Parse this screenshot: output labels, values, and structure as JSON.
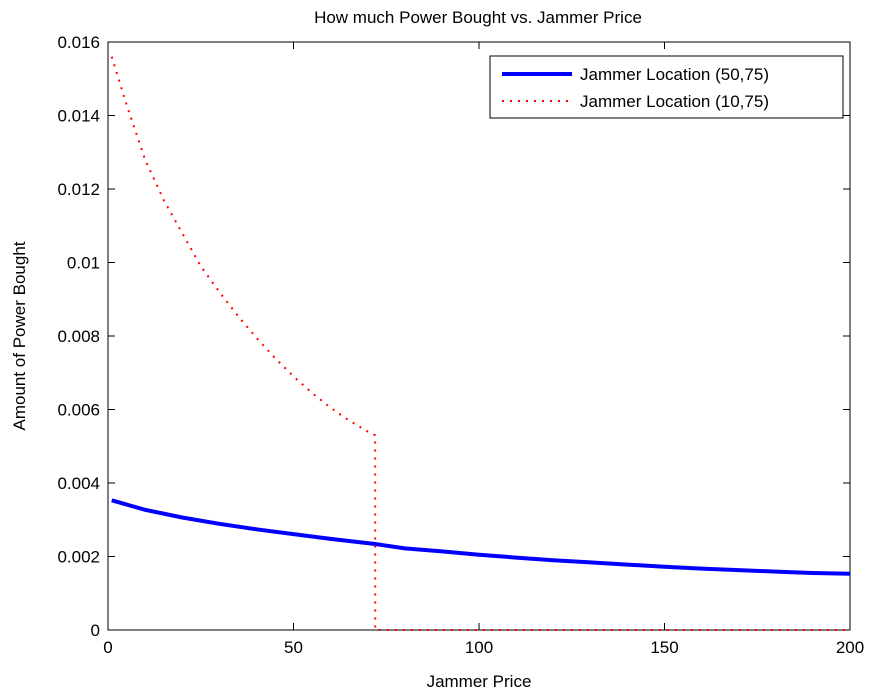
{
  "chart_data": {
    "type": "line",
    "title": "How much Power Bought vs. Jammer Price",
    "xlabel": "Jammer Price",
    "ylabel": "Amount of Power Bought",
    "xlim": [
      0,
      200
    ],
    "ylim": [
      0,
      0.016
    ],
    "xticks": [
      0,
      50,
      100,
      150,
      200
    ],
    "xtick_labels": [
      "0",
      "50",
      "100",
      "150",
      "200"
    ],
    "yticks": [
      0,
      0.002,
      0.004,
      0.006,
      0.008,
      0.01,
      0.012,
      0.014,
      0.016
    ],
    "ytick_labels": [
      "0",
      "0.002",
      "0.004",
      "0.006",
      "0.008",
      "0.01",
      "0.012",
      "0.014",
      "0.016"
    ],
    "grid": false,
    "legend_position": "top-right",
    "series": [
      {
        "name": "Jammer Location (50,75)",
        "color": "#0000ff",
        "style": "solid",
        "x": [
          1,
          10,
          20,
          30,
          40,
          50,
          60,
          72,
          80,
          90,
          100,
          110,
          120,
          130,
          140,
          150,
          160,
          170,
          180,
          190,
          200
        ],
        "y": [
          0.00353,
          0.00327,
          0.00306,
          0.00289,
          0.00274,
          0.00261,
          0.00248,
          0.00234,
          0.00222,
          0.00214,
          0.00205,
          0.00197,
          0.0019,
          0.00184,
          0.00178,
          0.00172,
          0.00167,
          0.00163,
          0.00159,
          0.00155,
          0.00153
        ]
      },
      {
        "name": "Jammer Location (10,75)",
        "color": "#ff0000",
        "style": "dotted",
        "x": [
          1,
          5,
          10,
          15,
          20,
          25,
          30,
          35,
          40,
          45,
          50,
          55,
          60,
          65,
          70,
          72,
          72.01,
          80,
          100,
          120,
          140,
          160,
          180,
          200
        ],
        "y": [
          0.0156,
          0.0143,
          0.0128,
          0.0117,
          0.0108,
          0.0099,
          0.0092,
          0.00855,
          0.00795,
          0.0074,
          0.0069,
          0.00645,
          0.00605,
          0.0057,
          0.0054,
          0.0053,
          0.0,
          0.0,
          0.0,
          0.0,
          0.0,
          0.0,
          0.0,
          0.0
        ]
      }
    ]
  }
}
